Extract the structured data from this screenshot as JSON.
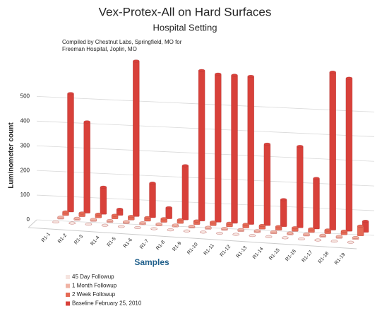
{
  "chart_data": {
    "type": "bar3d",
    "title": "Vex-Protex-All on Hard Surfaces",
    "subtitle": "Hospital Setting",
    "annotation": [
      "Compiled by Chestnut Labs, Springfield, MO for",
      "Freeman Hospital, Joplin, MO"
    ],
    "y_label": "Luminometer count",
    "x_label": "Samples",
    "categories": [
      "R1-1",
      "R1-2",
      "R1-3",
      "R1-4",
      "R1-5",
      "R1-6",
      "R1-7",
      "R1-8",
      "R1-9",
      "R1-10",
      "R1-11",
      "R1-12",
      "R1-13",
      "R1-14",
      "R1-15",
      "R1-16",
      "R1-17",
      "R1-18",
      "R1-19"
    ],
    "series": [
      {
        "name": "45 Day Followup",
        "color": "#f6e4df",
        "values": [
          3,
          3,
          3,
          3,
          3,
          3,
          3,
          3,
          3,
          3,
          3,
          3,
          3,
          3,
          3,
          3,
          3,
          3,
          3
        ]
      },
      {
        "name": "1 Month Followup",
        "color": "#f0b3a4",
        "values": [
          8,
          8,
          8,
          8,
          8,
          8,
          8,
          8,
          8,
          8,
          8,
          8,
          8,
          8,
          8,
          8,
          8,
          8,
          8
        ]
      },
      {
        "name": "2 Week Followup",
        "color": "#e56a55",
        "values": [
          15,
          15,
          15,
          15,
          15,
          15,
          15,
          15,
          15,
          15,
          15,
          15,
          15,
          15,
          15,
          15,
          15,
          15,
          40
        ]
      },
      {
        "name": "Baseline February 25, 2010",
        "color": "#d8413a",
        "values": [
          480,
          370,
          110,
          25,
          630,
          140,
          45,
          220,
          610,
          600,
          600,
          600,
          330,
          110,
          330,
          205,
          640,
          620,
          45
        ]
      }
    ],
    "ylim": [
      0,
      650
    ],
    "yticks": [
      0,
      100,
      200,
      300,
      400,
      500
    ],
    "grid": true
  }
}
